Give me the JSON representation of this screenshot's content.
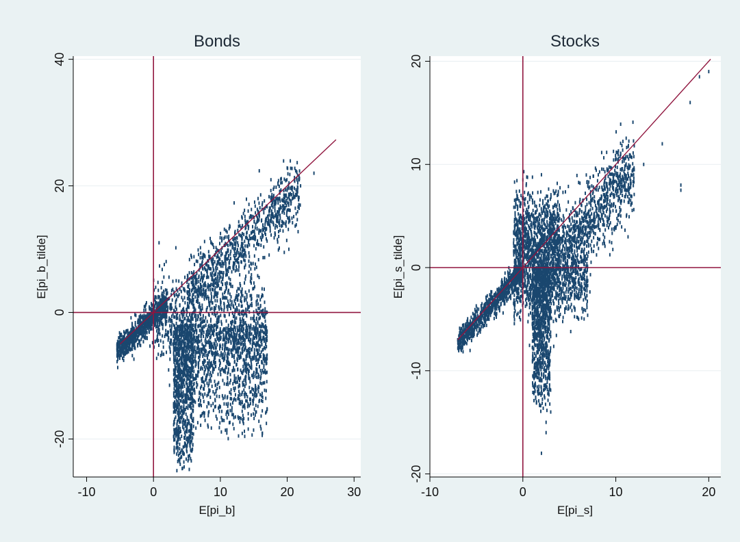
{
  "figure": {
    "background": "#eaf2f3",
    "plot_background": "#ffffff",
    "marker_color": "#1a476f",
    "reference_line_color": "#90153e"
  },
  "chart_data": [
    {
      "type": "scatter",
      "title": "Bonds",
      "xlabel": "E[pi_b]",
      "ylabel": "E[pi_b_tilde]",
      "xlim": [
        -12,
        31
      ],
      "ylim": [
        -26,
        40.5
      ],
      "xticks": [
        -10,
        0,
        10,
        20,
        30
      ],
      "yticks": [
        -20,
        0,
        20,
        40
      ],
      "grid": "horizontal",
      "reference_lines": {
        "x": 0,
        "y": 0,
        "diagonal": [
          [
            -5,
            -5
          ],
          [
            27.3,
            27.3
          ]
        ]
      },
      "clusters": [
        {
          "x_range": [
            -5.5,
            2
          ],
          "y_about_x": -0.6,
          "y_spread": 1.0
        },
        {
          "x_range": [
            0,
            17
          ],
          "y_center": -1,
          "y_spread": 3.5
        },
        {
          "x_range": [
            3,
            6
          ],
          "y_range": [
            -25,
            -2
          ]
        },
        {
          "x_range": [
            6,
            17
          ],
          "y_range": [
            -20,
            -2
          ]
        },
        {
          "x_range": [
            5,
            22
          ],
          "y_about_x": -2.5,
          "y_spread": 2.5
        }
      ],
      "points": [
        [
          -5,
          -5.5
        ],
        [
          -4,
          -4.3
        ],
        [
          -3,
          -3.6
        ],
        [
          -2,
          -2.4
        ],
        [
          -1,
          -1.5
        ],
        [
          0,
          -0.4
        ],
        [
          1,
          0.3
        ],
        [
          2,
          1.2
        ],
        [
          3,
          -2
        ],
        [
          4,
          -5
        ],
        [
          4.5,
          -10
        ],
        [
          4,
          -15
        ],
        [
          4,
          -20
        ],
        [
          4,
          -24
        ],
        [
          3.5,
          -25
        ],
        [
          5,
          -22
        ],
        [
          6,
          -18
        ],
        [
          8,
          -10
        ],
        [
          10,
          -8
        ],
        [
          12,
          -12
        ],
        [
          14,
          -14
        ],
        [
          16,
          -18
        ],
        [
          16,
          1
        ],
        [
          17,
          0
        ],
        [
          15,
          -1
        ],
        [
          10,
          2
        ],
        [
          11,
          6
        ],
        [
          13,
          10
        ],
        [
          15,
          12
        ],
        [
          18,
          15
        ],
        [
          20,
          18
        ],
        [
          22,
          20
        ],
        [
          24,
          22
        ]
      ]
    },
    {
      "type": "scatter",
      "title": "Stocks",
      "xlabel": "E[pi_s]",
      "ylabel": "E[pi_s_tilde]",
      "xlim": [
        -10,
        21.3
      ],
      "ylim": [
        -20.3,
        20.5
      ],
      "xticks": [
        -10,
        0,
        10,
        20
      ],
      "yticks": [
        -20,
        -10,
        0,
        10,
        20
      ],
      "grid": "horizontal",
      "reference_lines": {
        "x": 0,
        "y": 0,
        "diagonal": [
          [
            -7,
            -7
          ],
          [
            20.2,
            20.2
          ]
        ]
      },
      "clusters": [
        {
          "x_range": [
            -7,
            0
          ],
          "y_about_x": -0.3,
          "y_spread": 0.6
        },
        {
          "x_range": [
            -1,
            4
          ],
          "y_center": 2.8,
          "y_spread": 2.2
        },
        {
          "x_range": [
            1,
            3
          ],
          "y_range": [
            -14,
            0
          ]
        },
        {
          "x_range": [
            3,
            12
          ],
          "y_about_x": -2.5,
          "y_spread": 2
        },
        {
          "x_range": [
            -1,
            7
          ],
          "y_center": -1,
          "y_spread": 2
        }
      ],
      "points": [
        [
          -7,
          -7
        ],
        [
          -5,
          -5.2
        ],
        [
          -3,
          -3
        ],
        [
          -1,
          -1.2
        ],
        [
          0,
          0.5
        ],
        [
          1,
          2
        ],
        [
          2,
          3
        ],
        [
          3,
          3.5
        ],
        [
          2,
          -8
        ],
        [
          2,
          -12
        ],
        [
          2.5,
          -15
        ],
        [
          3,
          -14
        ],
        [
          2,
          -18
        ],
        [
          2.5,
          -16
        ],
        [
          5,
          1
        ],
        [
          7,
          4
        ],
        [
          9,
          6
        ],
        [
          11,
          9
        ],
        [
          13,
          10
        ],
        [
          15,
          12
        ],
        [
          17,
          8
        ],
        [
          17,
          7.5
        ],
        [
          18,
          16
        ],
        [
          19,
          18.5
        ],
        [
          20,
          19
        ],
        [
          0,
          8.5
        ],
        [
          2,
          9
        ],
        [
          6,
          -5
        ],
        [
          4,
          -3
        ]
      ]
    }
  ]
}
